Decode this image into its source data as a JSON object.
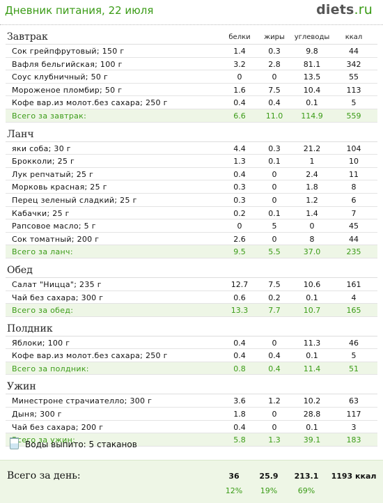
{
  "header": {
    "title": "Дневник питания, 22 июля",
    "brand_name": "diets",
    "brand_tld": ".ru"
  },
  "columns": [
    "белки",
    "жиры",
    "углеводы",
    "ккал"
  ],
  "meals": [
    {
      "title": "Завтрак",
      "show_columns": true,
      "items": [
        {
          "name": "Сок грейпфрутовый; 150 г",
          "b": "1.4",
          "f": "0.3",
          "c": "9.8",
          "k": "44"
        },
        {
          "name": "Вафля бельгийская; 100 г",
          "b": "3.2",
          "f": "2.8",
          "c": "81.1",
          "k": "342"
        },
        {
          "name": "Соус клубничный; 50 г",
          "b": "0",
          "f": "0",
          "c": "13.5",
          "k": "55"
        },
        {
          "name": "Мороженое пломбир; 50 г",
          "b": "1.6",
          "f": "7.5",
          "c": "10.4",
          "k": "113"
        },
        {
          "name": "Кофе вар.из молот.без сахара; 250 г",
          "b": "0.4",
          "f": "0.4",
          "c": "0.1",
          "k": "5"
        }
      ],
      "total": {
        "name": "Всего за завтрак:",
        "b": "6.6",
        "f": "11.0",
        "c": "114.9",
        "k": "559"
      }
    },
    {
      "title": "Ланч",
      "show_columns": false,
      "items": [
        {
          "name": "яки соба; 30 г",
          "b": "4.4",
          "f": "0.3",
          "c": "21.2",
          "k": "104"
        },
        {
          "name": "Брокколи; 25 г",
          "b": "1.3",
          "f": "0.1",
          "c": "1",
          "k": "10"
        },
        {
          "name": "Лук репчатый; 25 г",
          "b": "0.4",
          "f": "0",
          "c": "2.4",
          "k": "11"
        },
        {
          "name": "Морковь красная; 25 г",
          "b": "0.3",
          "f": "0",
          "c": "1.8",
          "k": "8"
        },
        {
          "name": "Перец зеленый сладкий; 25 г",
          "b": "0.3",
          "f": "0",
          "c": "1.2",
          "k": "6"
        },
        {
          "name": "Кабачки; 25 г",
          "b": "0.2",
          "f": "0.1",
          "c": "1.4",
          "k": "7"
        },
        {
          "name": "Рапсовое масло; 5 г",
          "b": "0",
          "f": "5",
          "c": "0",
          "k": "45"
        },
        {
          "name": "Сок томатный; 200 г",
          "b": "2.6",
          "f": "0",
          "c": "8",
          "k": "44"
        }
      ],
      "total": {
        "name": "Всего за ланч:",
        "b": "9.5",
        "f": "5.5",
        "c": "37.0",
        "k": "235"
      }
    },
    {
      "title": "Обед",
      "show_columns": false,
      "items": [
        {
          "name": "Салат \"Ницца\"; 235 г",
          "b": "12.7",
          "f": "7.5",
          "c": "10.6",
          "k": "161"
        },
        {
          "name": "Чай без сахара; 300 г",
          "b": "0.6",
          "f": "0.2",
          "c": "0.1",
          "k": "4"
        }
      ],
      "total": {
        "name": "Всего за обед:",
        "b": "13.3",
        "f": "7.7",
        "c": "10.7",
        "k": "165"
      }
    },
    {
      "title": "Полдник",
      "show_columns": false,
      "items": [
        {
          "name": "Яблоки; 100 г",
          "b": "0.4",
          "f": "0",
          "c": "11.3",
          "k": "46"
        },
        {
          "name": "Кофе вар.из молот.без сахара; 250 г",
          "b": "0.4",
          "f": "0.4",
          "c": "0.1",
          "k": "5"
        }
      ],
      "total": {
        "name": "Всего за полдник:",
        "b": "0.8",
        "f": "0.4",
        "c": "11.4",
        "k": "51"
      }
    },
    {
      "title": "Ужин",
      "show_columns": false,
      "items": [
        {
          "name": "Минестроне страчиателло; 300 г",
          "b": "3.6",
          "f": "1.2",
          "c": "10.2",
          "k": "63"
        },
        {
          "name": "Дыня; 300 г",
          "b": "1.8",
          "f": "0",
          "c": "28.8",
          "k": "117"
        },
        {
          "name": "Чай без сахара; 200 г",
          "b": "0.4",
          "f": "0",
          "c": "0.1",
          "k": "3"
        }
      ],
      "total": {
        "name": "Всего за ужин:",
        "b": "5.8",
        "f": "1.3",
        "c": "39.1",
        "k": "183"
      }
    }
  ],
  "water": {
    "label": "Воды выпито: 5 стаканов",
    "icon": "glass-icon"
  },
  "day_total": {
    "label": "Всего за день:",
    "b": "36",
    "f": "25.9",
    "c": "213.1",
    "k": "1193 ккал",
    "pct_b": "12%",
    "pct_f": "19%",
    "pct_c": "69%"
  },
  "colors": {
    "accent": "#3a9b16",
    "total_bg": "#eef6e6"
  }
}
